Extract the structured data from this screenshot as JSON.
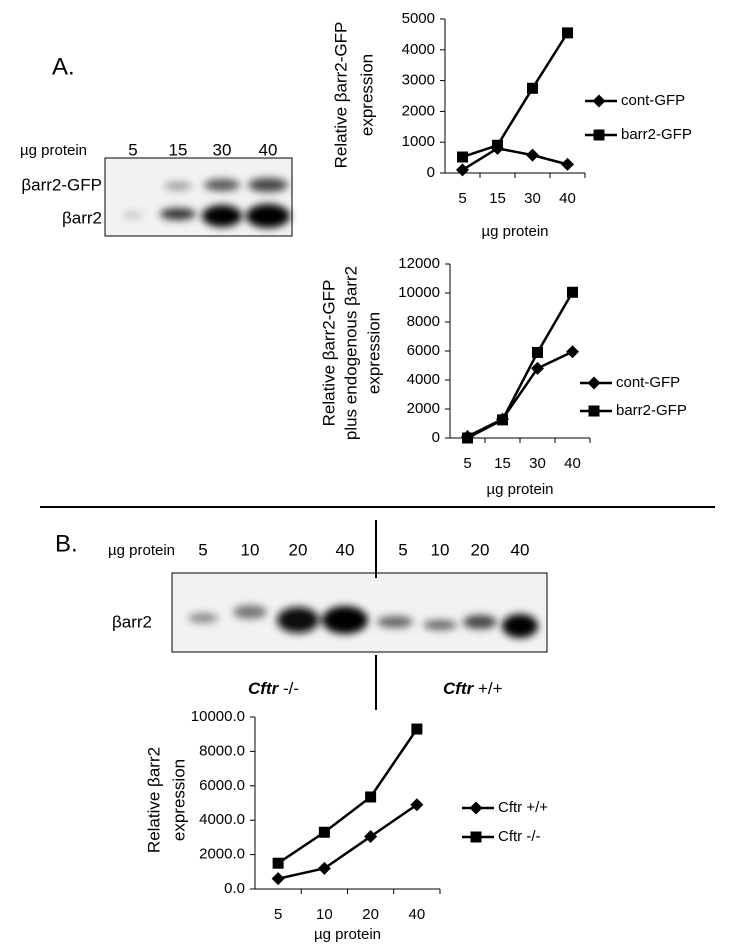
{
  "panel_a": {
    "label": "A.",
    "blot": {
      "x_label": "µg protein",
      "lanes": [
        "5",
        "15",
        "30",
        "40"
      ],
      "rows": [
        "βarr2-GFP",
        "βarr2"
      ]
    }
  },
  "panel_b": {
    "label": "B.",
    "blot": {
      "x_label": "µg protein",
      "lanes": [
        "5",
        "10",
        "20",
        "40",
        "5",
        "10",
        "20",
        "40"
      ],
      "rows": [
        "βarr2"
      ],
      "groups": [
        {
          "gene": "Cftr",
          "genotype": "-/-"
        },
        {
          "gene": "Cftr",
          "genotype": "+/+"
        }
      ]
    }
  },
  "chart_data": [
    {
      "type": "line",
      "y_label": [
        "Relative βarr2-GFP",
        "expression"
      ],
      "x_label": "µg protein",
      "categories": [
        "5",
        "15",
        "30",
        "40"
      ],
      "ylim": [
        0,
        5000
      ],
      "yticks": [
        0,
        1000,
        2000,
        3000,
        4000,
        5000
      ],
      "legend": "right",
      "series": [
        {
          "name": "cont-GFP",
          "color": "#000000",
          "marker": "diamond",
          "values": [
            100,
            800,
            580,
            280
          ]
        },
        {
          "name": "barr2-GFP",
          "color": "#000000",
          "marker": "square",
          "values": [
            520,
            900,
            2750,
            4550
          ]
        }
      ]
    },
    {
      "type": "line",
      "y_label": [
        "Relative βarr2-GFP",
        "plus endogenous βarr2",
        "expression"
      ],
      "x_label": "µg protein",
      "categories": [
        "5",
        "15",
        "30",
        "40"
      ],
      "ylim": [
        0,
        12000
      ],
      "yticks": [
        0,
        2000,
        4000,
        6000,
        8000,
        10000,
        12000
      ],
      "legend": "right",
      "series": [
        {
          "name": "cont-GFP",
          "color": "#000000",
          "marker": "diamond",
          "values": [
            100,
            1300,
            4800,
            5950
          ]
        },
        {
          "name": "barr2-GFP",
          "color": "#000000",
          "marker": "square",
          "values": [
            0,
            1250,
            5900,
            10050
          ]
        }
      ]
    },
    {
      "type": "line",
      "y_label": [
        "Relative βarr2",
        "expression"
      ],
      "x_label": "µg protein",
      "categories": [
        "5",
        "10",
        "20",
        "40"
      ],
      "ylim": [
        0,
        10000
      ],
      "yticks": [
        {
          "value": 0,
          "label": "0.0"
        },
        {
          "value": 2000,
          "label": "2000.0"
        },
        {
          "value": 4000,
          "label": "4000.0"
        },
        {
          "value": 6000,
          "label": "6000.0"
        },
        {
          "value": 8000,
          "label": "8000.0"
        },
        {
          "value": 10000,
          "label": "10000.0"
        }
      ],
      "legend": "right",
      "series": [
        {
          "name": "Cftr +/+",
          "color": "#000000",
          "marker": "diamond",
          "values": [
            600,
            1200,
            3050,
            4900
          ]
        },
        {
          "name": "Cftr -/-",
          "color": "#000000",
          "marker": "square",
          "values": [
            1500,
            3300,
            5350,
            9300
          ]
        }
      ]
    }
  ]
}
